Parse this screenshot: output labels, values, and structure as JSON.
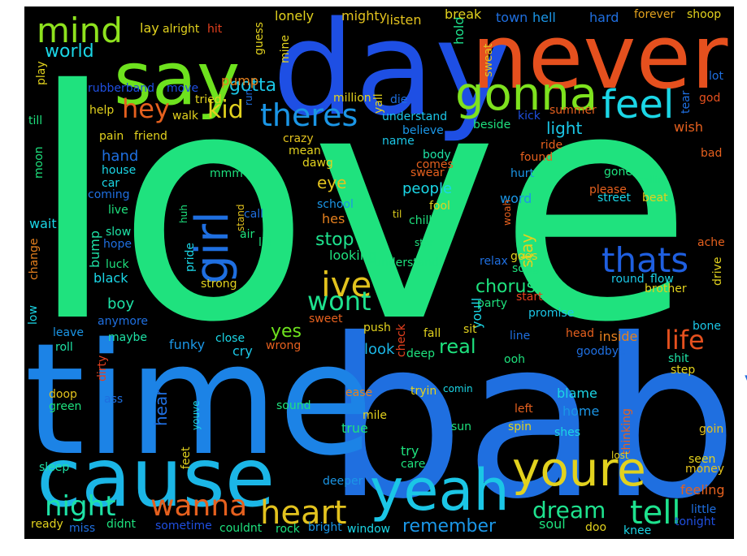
{
  "background": "#000000",
  "words": [
    {
      "text": "love",
      "color": "#1fe27e"
    },
    {
      "text": "baby",
      "color": "#1f6fe0"
    },
    {
      "text": "time",
      "color": "#1c83e6"
    },
    {
      "text": "day",
      "color": "#1e4fe4"
    },
    {
      "text": "never",
      "color": "#e5501e"
    },
    {
      "text": "cause",
      "color": "#1bb6e6"
    },
    {
      "text": "say",
      "color": "#6ee21e"
    },
    {
      "text": "yeah",
      "color": "#1bc6e6"
    },
    {
      "text": "youre",
      "color": "#e2d21e"
    },
    {
      "text": "gonna",
      "color": "#7ee21e"
    },
    {
      "text": "girl",
      "color": "#1f6fe0"
    },
    {
      "text": "mind",
      "color": "#8ee21e"
    },
    {
      "text": "feel",
      "color": "#1bd6e6"
    },
    {
      "text": "theres",
      "color": "#1b96e6"
    },
    {
      "text": "heart",
      "color": "#e2c21e"
    },
    {
      "text": "thats",
      "color": "#1f5fe0"
    },
    {
      "text": "ive",
      "color": "#e2c21e"
    },
    {
      "text": "wanna",
      "color": "#e5601e"
    },
    {
      "text": "tell",
      "color": "#1ee28e"
    },
    {
      "text": "night",
      "color": "#1ee2a6"
    },
    {
      "text": "wont",
      "color": "#1ee28e"
    },
    {
      "text": "hey",
      "color": "#e5601e"
    },
    {
      "text": "kid",
      "color": "#e2d21e"
    },
    {
      "text": "life",
      "color": "#e5501e"
    },
    {
      "text": "dream",
      "color": "#1ee28e"
    },
    {
      "text": "remember",
      "color": "#1b96e6"
    },
    {
      "text": "world",
      "color": "#1bd6e6"
    },
    {
      "text": "gotta",
      "color": "#1bc6e6"
    },
    {
      "text": "chorus",
      "color": "#1ee27e"
    },
    {
      "text": "stop",
      "color": "#1ee28e"
    },
    {
      "text": "real",
      "color": "#1ee27e"
    },
    {
      "text": "yes",
      "color": "#6ee21e"
    },
    {
      "text": "stay",
      "color": "#e2d21e"
    },
    {
      "text": "people",
      "color": "#1bd6e6"
    },
    {
      "text": "eye",
      "color": "#e2c21e"
    },
    {
      "text": "light",
      "color": "#1bc6e6"
    },
    {
      "text": "look",
      "color": "#1bb6e6"
    },
    {
      "text": "hear",
      "color": "#1f6fe0"
    },
    {
      "text": "funky",
      "color": "#1b96e6"
    },
    {
      "text": "boy",
      "color": "#1ee2a6"
    },
    {
      "text": "hes",
      "color": "#e5801e"
    },
    {
      "text": "hold",
      "color": "#1ee28e"
    },
    {
      "text": "pump",
      "color": "#e5801e"
    },
    {
      "text": "lonely",
      "color": "#e2d21e"
    },
    {
      "text": "mighty",
      "color": "#e2c21e"
    },
    {
      "text": "listen",
      "color": "#e2c21e"
    },
    {
      "text": "break",
      "color": "#e2d21e"
    },
    {
      "text": "town",
      "color": "#1f6fe0"
    },
    {
      "text": "hell",
      "color": "#1b96e6"
    },
    {
      "text": "hard",
      "color": "#1f6fe0"
    },
    {
      "text": "forever",
      "color": "#e2a21e"
    },
    {
      "text": "shoop",
      "color": "#e2d21e"
    },
    {
      "text": "lay",
      "color": "#e2d21e"
    },
    {
      "text": "alright",
      "color": "#e2d21e"
    },
    {
      "text": "hit",
      "color": "#e5401e"
    },
    {
      "text": "guess",
      "color": "#e2d21e"
    },
    {
      "text": "mine",
      "color": "#e2d21e"
    },
    {
      "text": "play",
      "color": "#e2d21e"
    },
    {
      "text": "rubberband",
      "color": "#1f4fe0"
    },
    {
      "text": "move",
      "color": "#1f4fe0"
    },
    {
      "text": "tried",
      "color": "#e2d21e"
    },
    {
      "text": "run",
      "color": "#1f6fe0"
    },
    {
      "text": "million",
      "color": "#e2d21e"
    },
    {
      "text": "die",
      "color": "#1f6fe0"
    },
    {
      "text": "yall",
      "color": "#e2d21e"
    },
    {
      "text": "understand",
      "color": "#1bc6e6"
    },
    {
      "text": "kick",
      "color": "#1f4fe0"
    },
    {
      "text": "summer",
      "color": "#e5601e"
    },
    {
      "text": "tear",
      "color": "#1f6fe0"
    },
    {
      "text": "god",
      "color": "#e5501e"
    },
    {
      "text": "lot",
      "color": "#1f6fe0"
    },
    {
      "text": "sweat",
      "color": "#e2c21e"
    },
    {
      "text": "till",
      "color": "#1ee27e"
    },
    {
      "text": "help",
      "color": "#e2d21e"
    },
    {
      "text": "walk",
      "color": "#e2d21e"
    },
    {
      "text": "pain",
      "color": "#e2d21e"
    },
    {
      "text": "friend",
      "color": "#e2d21e"
    },
    {
      "text": "crazy",
      "color": "#e2c21e"
    },
    {
      "text": "believe",
      "color": "#1b96e6"
    },
    {
      "text": "beside",
      "color": "#1ee27e"
    },
    {
      "text": "wish",
      "color": "#e5601e"
    },
    {
      "text": "moon",
      "color": "#1ee27e"
    },
    {
      "text": "hand",
      "color": "#1f6fe0"
    },
    {
      "text": "house",
      "color": "#1bd6e6"
    },
    {
      "text": "car",
      "color": "#1bd6e6"
    },
    {
      "text": "coming",
      "color": "#1f6fe0"
    },
    {
      "text": "mean",
      "color": "#e2d21e"
    },
    {
      "text": "name",
      "color": "#1bc6e6"
    },
    {
      "text": "body",
      "color": "#1ee2a6"
    },
    {
      "text": "ride",
      "color": "#e5601e"
    },
    {
      "text": "found",
      "color": "#e5601e"
    },
    {
      "text": "bad",
      "color": "#e5601e"
    },
    {
      "text": "dawg",
      "color": "#e2d21e"
    },
    {
      "text": "comes",
      "color": "#e5601e"
    },
    {
      "text": "swear",
      "color": "#e5601e"
    },
    {
      "text": "hurt",
      "color": "#1b96e6"
    },
    {
      "text": "mmm",
      "color": "#1ee27e"
    },
    {
      "text": "gone",
      "color": "#1ee27e"
    },
    {
      "text": "callin",
      "color": "#1ee27e"
    },
    {
      "text": "please",
      "color": "#e5601e"
    },
    {
      "text": "street",
      "color": "#1bd6e6"
    },
    {
      "text": "beat",
      "color": "#e2d21e"
    },
    {
      "text": "school",
      "color": "#1b96e6"
    },
    {
      "text": "fool",
      "color": "#e2d21e"
    },
    {
      "text": "word",
      "color": "#1b96e6"
    },
    {
      "text": "live",
      "color": "#1ee27e"
    },
    {
      "text": "huh",
      "color": "#1ee27e"
    },
    {
      "text": "stand",
      "color": "#e2c21e"
    },
    {
      "text": "call",
      "color": "#1f6fe0"
    },
    {
      "text": "til",
      "color": "#e2d21e"
    },
    {
      "text": "chill",
      "color": "#1ee27e"
    },
    {
      "text": "woah",
      "color": "#e5601e"
    },
    {
      "text": "wait",
      "color": "#1bd6e6"
    },
    {
      "text": "slow",
      "color": "#1ee2a6"
    },
    {
      "text": "air",
      "color": "#1ee27e"
    },
    {
      "text": "lie",
      "color": "#1ee27e"
    },
    {
      "text": "star",
      "color": "#1ee27e"
    },
    {
      "text": "ache",
      "color": "#e5601e"
    },
    {
      "text": "change",
      "color": "#e5801e"
    },
    {
      "text": "bump",
      "color": "#1ee2a6"
    },
    {
      "text": "hope",
      "color": "#1f6fe0"
    },
    {
      "text": "pride",
      "color": "#1bd6e6"
    },
    {
      "text": "looking",
      "color": "#1ee27e"
    },
    {
      "text": "understand",
      "color": "#1ee27e"
    },
    {
      "text": "goes",
      "color": "#e2d21e"
    },
    {
      "text": "relax",
      "color": "#1f6fe0"
    },
    {
      "text": "song",
      "color": "#1ee27e"
    },
    {
      "text": "drive",
      "color": "#e2d21e"
    },
    {
      "text": "luck",
      "color": "#1ee27e"
    },
    {
      "text": "black",
      "color": "#1bd6e6"
    },
    {
      "text": "strong",
      "color": "#e2d21e"
    },
    {
      "text": "round",
      "color": "#1bc6e6"
    },
    {
      "text": "flow",
      "color": "#1bd6e6"
    },
    {
      "text": "brother",
      "color": "#e2d21e"
    },
    {
      "text": "start",
      "color": "#e5401e"
    },
    {
      "text": "party",
      "color": "#1ee27e"
    },
    {
      "text": "youll",
      "color": "#1bd6e6"
    },
    {
      "text": "promise",
      "color": "#1bc6e6"
    },
    {
      "text": "low",
      "color": "#1bd6e6"
    },
    {
      "text": "anymore",
      "color": "#1f6fe0"
    },
    {
      "text": "sweet",
      "color": "#e5601e"
    },
    {
      "text": "push",
      "color": "#e2d21e"
    },
    {
      "text": "check",
      "color": "#e5401e"
    },
    {
      "text": "fall",
      "color": "#e2d21e"
    },
    {
      "text": "sit",
      "color": "#e2d21e"
    },
    {
      "text": "line",
      "color": "#1f6fe0"
    },
    {
      "text": "head",
      "color": "#e5601e"
    },
    {
      "text": "inside",
      "color": "#e5801e"
    },
    {
      "text": "bone",
      "color": "#1bc6e6"
    },
    {
      "text": "leave",
      "color": "#1b96e6"
    },
    {
      "text": "maybe",
      "color": "#1ee2a6"
    },
    {
      "text": "close",
      "color": "#1bd6e6"
    },
    {
      "text": "wrong",
      "color": "#e5601e"
    },
    {
      "text": "roll",
      "color": "#1ee2a6"
    },
    {
      "text": "cry",
      "color": "#1bc6e6"
    },
    {
      "text": "deep",
      "color": "#1ee27e"
    },
    {
      "text": "ooh",
      "color": "#1ee27e"
    },
    {
      "text": "goodbye",
      "color": "#1f6fe0"
    },
    {
      "text": "shit",
      "color": "#1ee2a6"
    },
    {
      "text": "step",
      "color": "#e2d21e"
    },
    {
      "text": "dirty",
      "color": "#e5401e"
    },
    {
      "text": "doop",
      "color": "#e2c21e"
    },
    {
      "text": "ass",
      "color": "#1f6fe0"
    },
    {
      "text": "green",
      "color": "#1ee27e"
    },
    {
      "text": "youve",
      "color": "#1bd6e6"
    },
    {
      "text": "ease",
      "color": "#e5801e"
    },
    {
      "text": "tryin",
      "color": "#e2d21e"
    },
    {
      "text": "comin",
      "color": "#1bd6e6"
    },
    {
      "text": "blame",
      "color": "#1bd6e6"
    },
    {
      "text": "left",
      "color": "#e5601e"
    },
    {
      "text": "home",
      "color": "#1b96e6"
    },
    {
      "text": "sound",
      "color": "#1ee27e"
    },
    {
      "text": "mile",
      "color": "#e2d21e"
    },
    {
      "text": "goin",
      "color": "#e2c21e"
    },
    {
      "text": "sun",
      "color": "#1ee27e"
    },
    {
      "text": "spin",
      "color": "#e2d21e"
    },
    {
      "text": "shes",
      "color": "#1bd6e6"
    },
    {
      "text": "thinking",
      "color": "#e5601e"
    },
    {
      "text": "feet",
      "color": "#e2d21e"
    },
    {
      "text": "true",
      "color": "#1ee27e"
    },
    {
      "text": "lost",
      "color": "#e2d21e"
    },
    {
      "text": "seen",
      "color": "#e2d21e"
    },
    {
      "text": "sleep",
      "color": "#1ee2a6"
    },
    {
      "text": "try",
      "color": "#1ee27e"
    },
    {
      "text": "care",
      "color": "#1ee27e"
    },
    {
      "text": "money",
      "color": "#e2c21e"
    },
    {
      "text": "deeper",
      "color": "#1b96e6"
    },
    {
      "text": "feeling",
      "color": "#e5601e"
    },
    {
      "text": "little",
      "color": "#1f6fe0"
    },
    {
      "text": "tonight",
      "color": "#1f4fe0"
    },
    {
      "text": "ready",
      "color": "#e2d21e"
    },
    {
      "text": "miss",
      "color": "#1f6fe0"
    },
    {
      "text": "didnt",
      "color": "#1ee27e"
    },
    {
      "text": "sometime",
      "color": "#1f4fe0"
    },
    {
      "text": "couldnt",
      "color": "#1ee27e"
    },
    {
      "text": "rock",
      "color": "#1ee27e"
    },
    {
      "text": "bright",
      "color": "#1b96e6"
    },
    {
      "text": "window",
      "color": "#1bd6e6"
    },
    {
      "text": "soul",
      "color": "#1ee27e"
    },
    {
      "text": "doo",
      "color": "#e2d21e"
    },
    {
      "text": "knee",
      "color": "#1bd6e6"
    }
  ]
}
